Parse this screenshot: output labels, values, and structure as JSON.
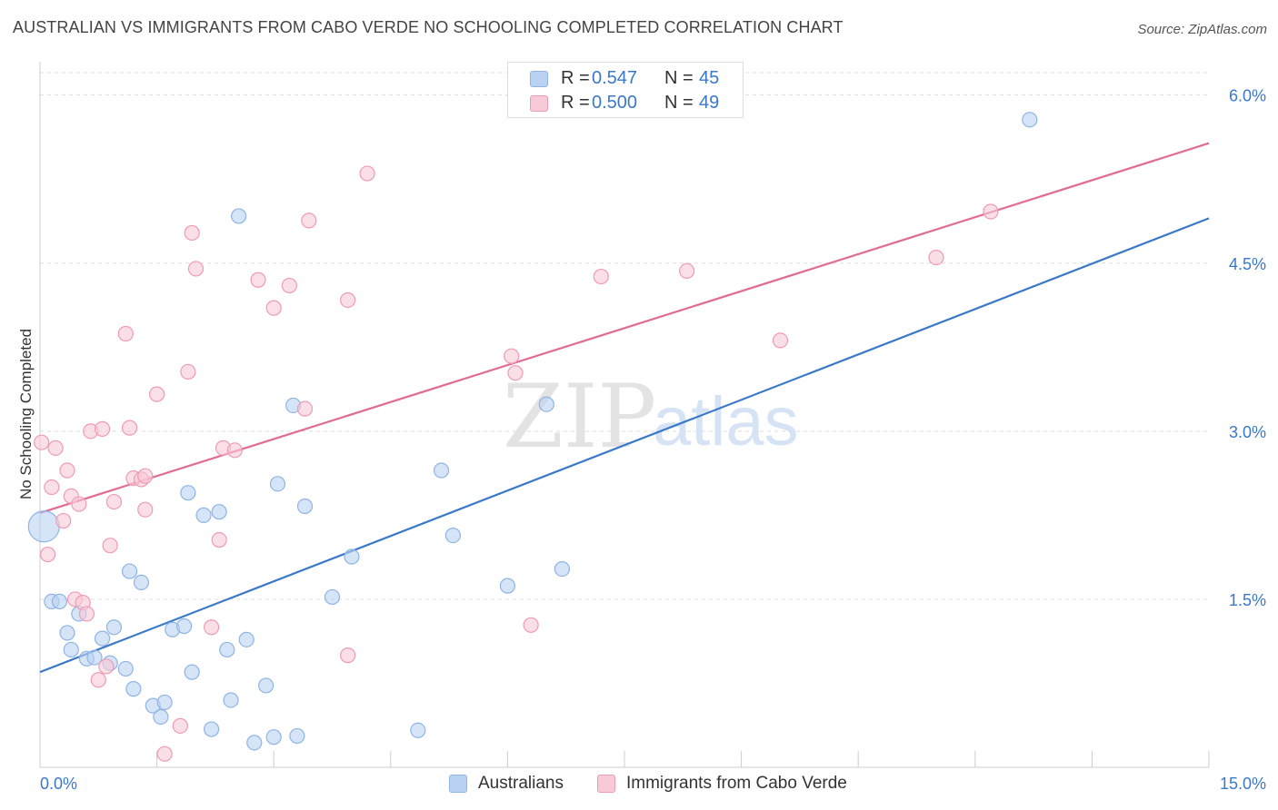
{
  "title": "AUSTRALIAN VS IMMIGRANTS FROM CABO VERDE NO SCHOOLING COMPLETED CORRELATION CHART",
  "source": "Source: ZipAtlas.com",
  "watermark": {
    "zip": "ZIP",
    "atlas": "atlas"
  },
  "colors": {
    "blue": "#3a78c9",
    "blue_fill": "#b9d2f2",
    "blue_stroke": "#8fb4e4",
    "pink": "#e06b93",
    "pink_fill": "#f8c9d7",
    "pink_stroke": "#ef9ab6",
    "grid": "#dddddd",
    "axis_value": "#3a78c9"
  },
  "legend": {
    "rows": [
      {
        "r_label": "R =",
        "r_value": "0.547",
        "n_label": "N =",
        "n_value": "45"
      },
      {
        "r_label": "R =",
        "r_value": "0.500",
        "n_label": "N =",
        "n_value": "49"
      }
    ],
    "bottom": [
      "Australians",
      "Immigrants from Cabo Verde"
    ]
  },
  "chart_data": {
    "type": "scatter",
    "xlabel": "",
    "ylabel": "No Schooling Completed",
    "xlim": [
      0,
      15
    ],
    "ylim": [
      0,
      6.2
    ],
    "x_tick_labels": [
      "0.0%",
      "15.0%"
    ],
    "y_ticks": [
      1.5,
      3.0,
      4.5,
      6.0
    ],
    "y_tick_labels": [
      "1.5%",
      "3.0%",
      "4.5%",
      "6.0%"
    ],
    "grid": true,
    "legend_position": "top-center",
    "series": [
      {
        "name": "Australians",
        "color": "blue",
        "trend": {
          "x": [
            0,
            15
          ],
          "y": [
            0.85,
            4.9
          ]
        },
        "points": [
          [
            0.05,
            2.15
          ],
          [
            0.15,
            1.48
          ],
          [
            0.25,
            1.48
          ],
          [
            0.35,
            1.2
          ],
          [
            0.4,
            1.05
          ],
          [
            0.5,
            1.37
          ],
          [
            0.6,
            0.97
          ],
          [
            0.7,
            0.98
          ],
          [
            0.8,
            1.15
          ],
          [
            0.95,
            1.25
          ],
          [
            0.9,
            0.93
          ],
          [
            1.1,
            0.88
          ],
          [
            1.2,
            0.7
          ],
          [
            1.15,
            1.75
          ],
          [
            1.3,
            1.65
          ],
          [
            1.45,
            0.55
          ],
          [
            1.55,
            0.45
          ],
          [
            1.6,
            0.58
          ],
          [
            1.7,
            1.23
          ],
          [
            1.85,
            1.26
          ],
          [
            1.9,
            2.45
          ],
          [
            1.95,
            0.85
          ],
          [
            2.1,
            2.25
          ],
          [
            2.2,
            0.34
          ],
          [
            2.3,
            2.28
          ],
          [
            2.4,
            1.05
          ],
          [
            2.45,
            0.6
          ],
          [
            2.55,
            4.92
          ],
          [
            2.65,
            1.14
          ],
          [
            2.75,
            0.22
          ],
          [
            2.9,
            0.73
          ],
          [
            3.0,
            0.27
          ],
          [
            3.05,
            2.53
          ],
          [
            3.3,
            0.28
          ],
          [
            3.25,
            3.23
          ],
          [
            3.4,
            2.33
          ],
          [
            3.75,
            1.52
          ],
          [
            4.0,
            1.88
          ],
          [
            4.85,
            0.33
          ],
          [
            5.15,
            2.65
          ],
          [
            5.3,
            2.07
          ],
          [
            6.0,
            1.62
          ],
          [
            6.5,
            3.24
          ],
          [
            6.7,
            1.77
          ],
          [
            12.7,
            5.78
          ]
        ]
      },
      {
        "name": "Immigrants from Cabo Verde",
        "color": "pink",
        "trend": {
          "x": [
            0,
            15
          ],
          "y": [
            2.27,
            5.57
          ]
        },
        "points": [
          [
            0.02,
            2.9
          ],
          [
            0.1,
            1.9
          ],
          [
            0.15,
            2.5
          ],
          [
            0.2,
            2.85
          ],
          [
            0.3,
            2.2
          ],
          [
            0.35,
            2.65
          ],
          [
            0.4,
            2.42
          ],
          [
            0.45,
            1.5
          ],
          [
            0.5,
            2.35
          ],
          [
            0.55,
            1.47
          ],
          [
            0.6,
            1.37
          ],
          [
            0.65,
            3.0
          ],
          [
            0.75,
            0.78
          ],
          [
            0.8,
            3.02
          ],
          [
            0.85,
            0.9
          ],
          [
            0.9,
            1.98
          ],
          [
            0.95,
            2.37
          ],
          [
            1.1,
            3.87
          ],
          [
            1.15,
            3.03
          ],
          [
            1.2,
            2.58
          ],
          [
            1.3,
            2.57
          ],
          [
            1.35,
            2.6
          ],
          [
            1.35,
            2.3
          ],
          [
            1.5,
            3.33
          ],
          [
            1.6,
            0.12
          ],
          [
            1.8,
            0.37
          ],
          [
            1.9,
            3.53
          ],
          [
            1.95,
            4.77
          ],
          [
            2.0,
            4.45
          ],
          [
            2.2,
            1.25
          ],
          [
            2.3,
            2.03
          ],
          [
            2.35,
            2.85
          ],
          [
            2.5,
            2.83
          ],
          [
            2.8,
            4.35
          ],
          [
            3.0,
            4.1
          ],
          [
            3.2,
            4.3
          ],
          [
            3.4,
            3.2
          ],
          [
            3.45,
            4.88
          ],
          [
            3.95,
            4.17
          ],
          [
            3.95,
            1.0
          ],
          [
            4.2,
            5.3
          ],
          [
            6.05,
            3.67
          ],
          [
            6.1,
            3.52
          ],
          [
            6.3,
            1.27
          ],
          [
            7.2,
            4.38
          ],
          [
            8.3,
            4.43
          ],
          [
            9.5,
            3.81
          ],
          [
            11.5,
            4.55
          ],
          [
            12.2,
            4.96
          ]
        ]
      }
    ]
  }
}
